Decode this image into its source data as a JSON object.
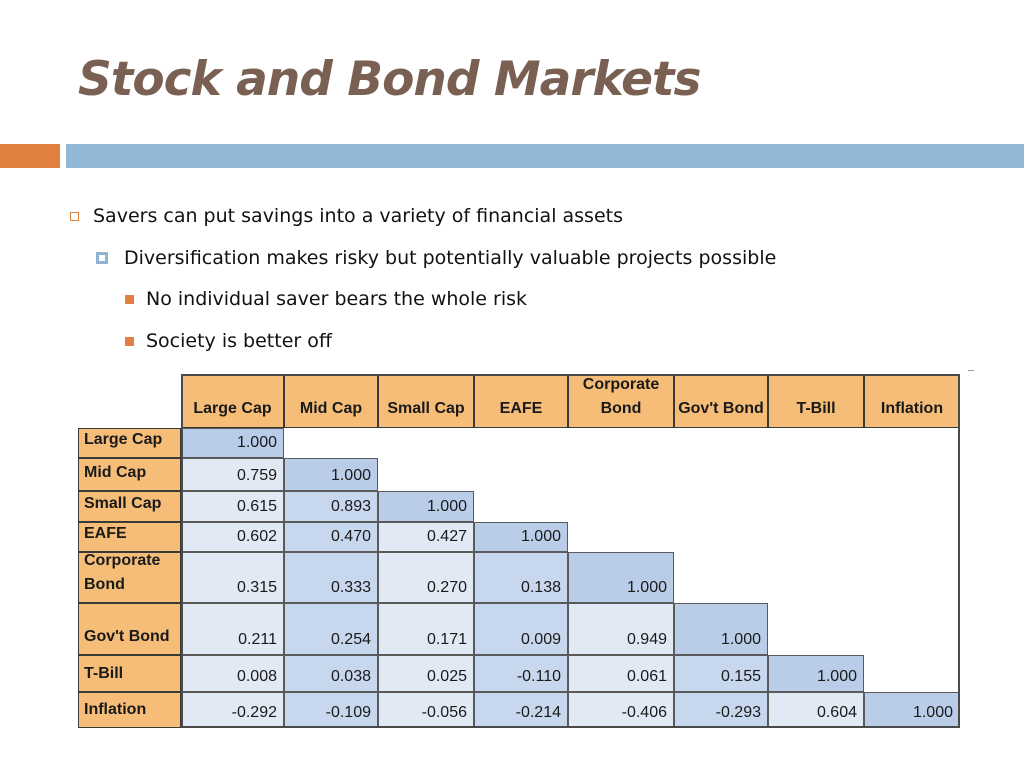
{
  "slide": {
    "title": "Stock and Bond Markets",
    "accent_orange": "#e07f3f",
    "accent_blue": "#93b7d6",
    "bullets": [
      {
        "level": 1,
        "marker": "hollow-square-icon",
        "text": "Savers can put savings into a variety of financial assets"
      },
      {
        "level": 2,
        "marker": "blue-square-icon",
        "text": "Diversification makes risky but potentially valuable projects possible"
      },
      {
        "level": 3,
        "marker": "orange-square-icon",
        "text": "No individual saver bears the whole risk"
      },
      {
        "level": 3,
        "marker": "orange-square-icon",
        "text": "Society is better off"
      }
    ]
  },
  "chart_data": {
    "type": "table",
    "columns": [
      "Large Cap",
      "Mid Cap",
      "Small Cap",
      "EAFE",
      "Corporate Bond",
      "Gov't Bond",
      "T-Bill",
      "Inflation"
    ],
    "rows": [
      {
        "label": "Large Cap",
        "values": [
          "1.000"
        ]
      },
      {
        "label": "Mid Cap",
        "values": [
          "0.759",
          "1.000"
        ]
      },
      {
        "label": "Small Cap",
        "values": [
          "0.615",
          "0.893",
          "1.000"
        ]
      },
      {
        "label": "EAFE",
        "values": [
          "0.602",
          "0.470",
          "0.427",
          "1.000"
        ]
      },
      {
        "label": "Corporate Bond",
        "values": [
          "0.315",
          "0.333",
          "0.270",
          "0.138",
          "1.000"
        ]
      },
      {
        "label": "Gov't Bond",
        "values": [
          "0.211",
          "0.254",
          "0.171",
          "0.009",
          "0.949",
          "1.000"
        ]
      },
      {
        "label": "T-Bill",
        "values": [
          "0.008",
          "0.038",
          "0.025",
          "-0.110",
          "0.061",
          "0.155",
          "1.000"
        ]
      },
      {
        "label": "Inflation",
        "values": [
          "-0.292",
          "-0.109",
          "-0.056",
          "-0.214",
          "-0.406",
          "-0.293",
          "0.604",
          "1.000"
        ]
      }
    ],
    "header_color": "#f5bd78",
    "diagonal_color": "#b9cde9",
    "cell_color": "#e1e9f5"
  }
}
